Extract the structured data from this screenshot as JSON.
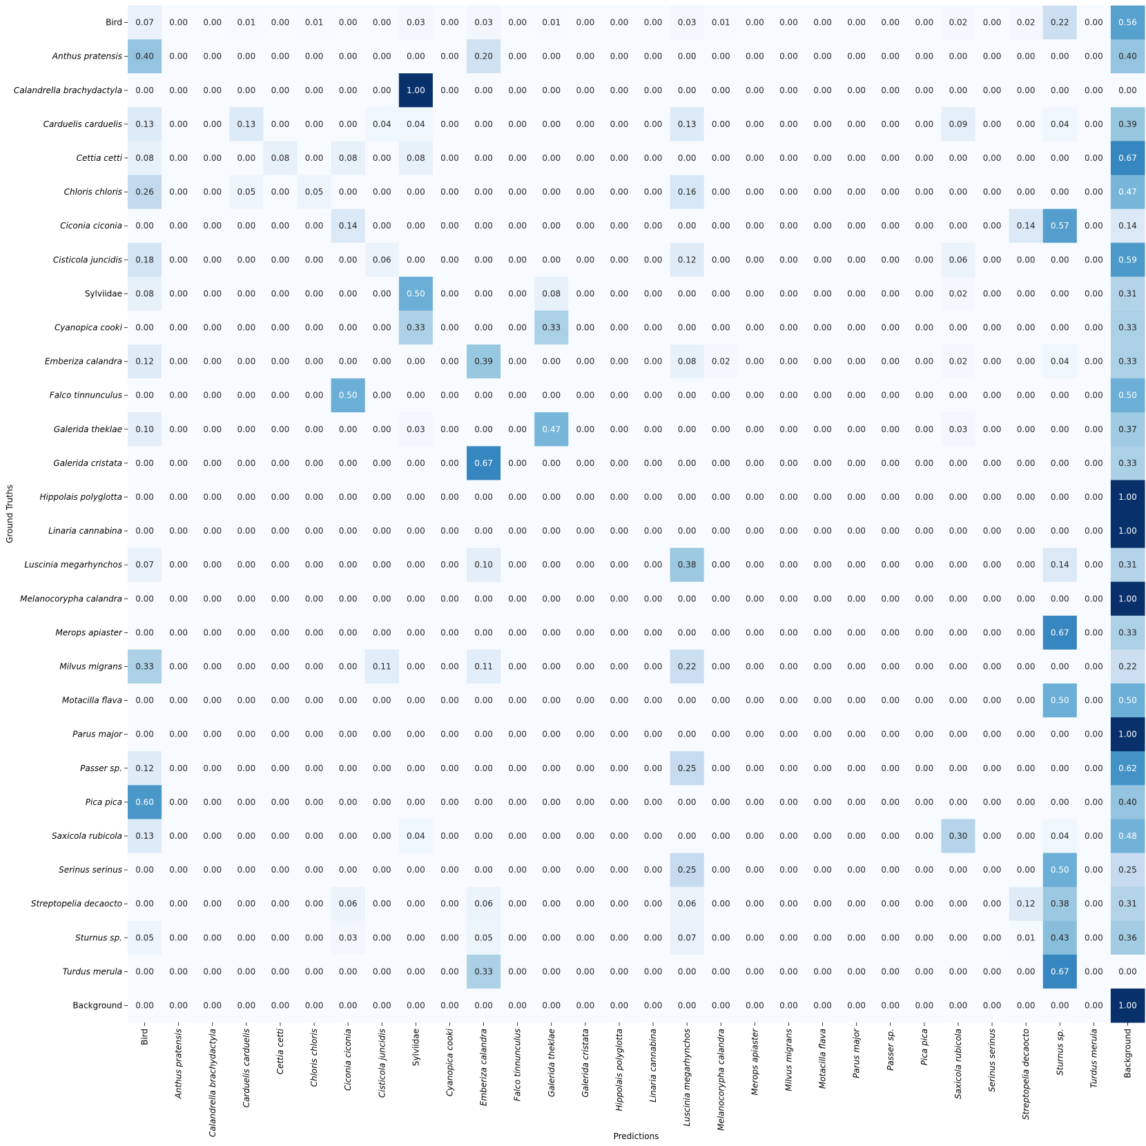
{
  "chart_data": {
    "type": "heatmap",
    "title": "",
    "xlabel": "Predictions",
    "ylabel": "Ground Truths",
    "colormap": "Blues",
    "value_range": [
      0,
      1
    ],
    "colors": {
      "low": "#f7fbff",
      "high": "#08306b"
    },
    "x_categories": [
      "Bird",
      "Anthus pratensis",
      "Calandrella brachydactyla",
      "Carduelis carduelis",
      "Cettia cetti",
      "Chloris chloris",
      "Ciconia ciconia",
      "Cisticola juncidis",
      "Sylviidae",
      "Cyanopica cooki",
      "Emberiza calandra",
      "Falco tinnunculus",
      "Galerida theklae",
      "Galerida cristata",
      "Hippolais polyglotta",
      "Linaria cannabina",
      "Luscinia megarhynchos",
      "Melanocorypha calandra",
      "Merops apiaster",
      "Milvus migrans",
      "Motacilla flava",
      "Parus major",
      "Passer sp.",
      "Pica pica",
      "Saxicola rubicola",
      "Serinus serinus",
      "Streptopelia decaocto",
      "Sturnus sp.",
      "Turdus merula",
      "Background"
    ],
    "y_categories": [
      "Bird",
      "Anthus pratensis",
      "Calandrella brachydactyla",
      "Carduelis carduelis",
      "Cettia cetti",
      "Chloris chloris",
      "Ciconia ciconia",
      "Cisticola juncidis",
      "Sylviidae",
      "Cyanopica cooki",
      "Emberiza calandra",
      "Falco tinnunculus",
      "Galerida theklae",
      "Galerida cristata",
      "Hippolais polyglotta",
      "Linaria cannabina",
      "Luscinia megarhynchos",
      "Melanocorypha calandra",
      "Merops apiaster",
      "Milvus migrans",
      "Motacilla flava",
      "Parus major",
      "Passer sp.",
      "Pica pica",
      "Saxicola rubicola",
      "Serinus serinus",
      "Streptopelia decaocto",
      "Sturnus sp.",
      "Turdus merula",
      "Background"
    ],
    "italic_labels": [
      false,
      true,
      true,
      true,
      true,
      true,
      true,
      true,
      false,
      true,
      true,
      true,
      true,
      true,
      true,
      true,
      true,
      true,
      true,
      true,
      true,
      true,
      true,
      true,
      true,
      true,
      true,
      true,
      true,
      false
    ],
    "values": [
      [
        0.07,
        0.0,
        0.0,
        0.01,
        0.0,
        0.01,
        0.0,
        0.0,
        0.03,
        0.0,
        0.03,
        0.0,
        0.01,
        0.0,
        0.0,
        0.0,
        0.03,
        0.01,
        0.0,
        0.0,
        0.0,
        0.0,
        0.0,
        0.0,
        0.02,
        0.0,
        0.02,
        0.22,
        0.0,
        0.56
      ],
      [
        0.4,
        0.0,
        0.0,
        0.0,
        0.0,
        0.0,
        0.0,
        0.0,
        0.0,
        0.0,
        0.2,
        0.0,
        0.0,
        0.0,
        0.0,
        0.0,
        0.0,
        0.0,
        0.0,
        0.0,
        0.0,
        0.0,
        0.0,
        0.0,
        0.0,
        0.0,
        0.0,
        0.0,
        0.0,
        0.4
      ],
      [
        0.0,
        0.0,
        0.0,
        0.0,
        0.0,
        0.0,
        0.0,
        0.0,
        1.0,
        0.0,
        0.0,
        0.0,
        0.0,
        0.0,
        0.0,
        0.0,
        0.0,
        0.0,
        0.0,
        0.0,
        0.0,
        0.0,
        0.0,
        0.0,
        0.0,
        0.0,
        0.0,
        0.0,
        0.0,
        0.0
      ],
      [
        0.13,
        0.0,
        0.0,
        0.13,
        0.0,
        0.0,
        0.0,
        0.04,
        0.04,
        0.0,
        0.0,
        0.0,
        0.0,
        0.0,
        0.0,
        0.0,
        0.13,
        0.0,
        0.0,
        0.0,
        0.0,
        0.0,
        0.0,
        0.0,
        0.09,
        0.0,
        0.0,
        0.04,
        0.0,
        0.39
      ],
      [
        0.08,
        0.0,
        0.0,
        0.0,
        0.08,
        0.0,
        0.08,
        0.0,
        0.08,
        0.0,
        0.0,
        0.0,
        0.0,
        0.0,
        0.0,
        0.0,
        0.0,
        0.0,
        0.0,
        0.0,
        0.0,
        0.0,
        0.0,
        0.0,
        0.0,
        0.0,
        0.0,
        0.0,
        0.0,
        0.67
      ],
      [
        0.26,
        0.0,
        0.0,
        0.05,
        0.0,
        0.05,
        0.0,
        0.0,
        0.0,
        0.0,
        0.0,
        0.0,
        0.0,
        0.0,
        0.0,
        0.0,
        0.16,
        0.0,
        0.0,
        0.0,
        0.0,
        0.0,
        0.0,
        0.0,
        0.0,
        0.0,
        0.0,
        0.0,
        0.0,
        0.47
      ],
      [
        0.0,
        0.0,
        0.0,
        0.0,
        0.0,
        0.0,
        0.14,
        0.0,
        0.0,
        0.0,
        0.0,
        0.0,
        0.0,
        0.0,
        0.0,
        0.0,
        0.0,
        0.0,
        0.0,
        0.0,
        0.0,
        0.0,
        0.0,
        0.0,
        0.0,
        0.0,
        0.14,
        0.57,
        0.0,
        0.14
      ],
      [
        0.18,
        0.0,
        0.0,
        0.0,
        0.0,
        0.0,
        0.0,
        0.06,
        0.0,
        0.0,
        0.0,
        0.0,
        0.0,
        0.0,
        0.0,
        0.0,
        0.12,
        0.0,
        0.0,
        0.0,
        0.0,
        0.0,
        0.0,
        0.0,
        0.06,
        0.0,
        0.0,
        0.0,
        0.0,
        0.59
      ],
      [
        0.08,
        0.0,
        0.0,
        0.0,
        0.0,
        0.0,
        0.0,
        0.0,
        0.5,
        0.0,
        0.0,
        0.0,
        0.08,
        0.0,
        0.0,
        0.0,
        0.0,
        0.0,
        0.0,
        0.0,
        0.0,
        0.0,
        0.0,
        0.0,
        0.02,
        0.0,
        0.0,
        0.0,
        0.0,
        0.31
      ],
      [
        0.0,
        0.0,
        0.0,
        0.0,
        0.0,
        0.0,
        0.0,
        0.0,
        0.33,
        0.0,
        0.0,
        0.0,
        0.33,
        0.0,
        0.0,
        0.0,
        0.0,
        0.0,
        0.0,
        0.0,
        0.0,
        0.0,
        0.0,
        0.0,
        0.0,
        0.0,
        0.0,
        0.0,
        0.0,
        0.33
      ],
      [
        0.12,
        0.0,
        0.0,
        0.0,
        0.0,
        0.0,
        0.0,
        0.0,
        0.0,
        0.0,
        0.39,
        0.0,
        0.0,
        0.0,
        0.0,
        0.0,
        0.08,
        0.02,
        0.0,
        0.0,
        0.0,
        0.0,
        0.0,
        0.0,
        0.02,
        0.0,
        0.0,
        0.04,
        0.0,
        0.33
      ],
      [
        0.0,
        0.0,
        0.0,
        0.0,
        0.0,
        0.0,
        0.5,
        0.0,
        0.0,
        0.0,
        0.0,
        0.0,
        0.0,
        0.0,
        0.0,
        0.0,
        0.0,
        0.0,
        0.0,
        0.0,
        0.0,
        0.0,
        0.0,
        0.0,
        0.0,
        0.0,
        0.0,
        0.0,
        0.0,
        0.5
      ],
      [
        0.1,
        0.0,
        0.0,
        0.0,
        0.0,
        0.0,
        0.0,
        0.0,
        0.03,
        0.0,
        0.0,
        0.0,
        0.47,
        0.0,
        0.0,
        0.0,
        0.0,
        0.0,
        0.0,
        0.0,
        0.0,
        0.0,
        0.0,
        0.0,
        0.03,
        0.0,
        0.0,
        0.0,
        0.0,
        0.37
      ],
      [
        0.0,
        0.0,
        0.0,
        0.0,
        0.0,
        0.0,
        0.0,
        0.0,
        0.0,
        0.0,
        0.67,
        0.0,
        0.0,
        0.0,
        0.0,
        0.0,
        0.0,
        0.0,
        0.0,
        0.0,
        0.0,
        0.0,
        0.0,
        0.0,
        0.0,
        0.0,
        0.0,
        0.0,
        0.0,
        0.33
      ],
      [
        0.0,
        0.0,
        0.0,
        0.0,
        0.0,
        0.0,
        0.0,
        0.0,
        0.0,
        0.0,
        0.0,
        0.0,
        0.0,
        0.0,
        0.0,
        0.0,
        0.0,
        0.0,
        0.0,
        0.0,
        0.0,
        0.0,
        0.0,
        0.0,
        0.0,
        0.0,
        0.0,
        0.0,
        0.0,
        1.0
      ],
      [
        0.0,
        0.0,
        0.0,
        0.0,
        0.0,
        0.0,
        0.0,
        0.0,
        0.0,
        0.0,
        0.0,
        0.0,
        0.0,
        0.0,
        0.0,
        0.0,
        0.0,
        0.0,
        0.0,
        0.0,
        0.0,
        0.0,
        0.0,
        0.0,
        0.0,
        0.0,
        0.0,
        0.0,
        0.0,
        1.0
      ],
      [
        0.07,
        0.0,
        0.0,
        0.0,
        0.0,
        0.0,
        0.0,
        0.0,
        0.0,
        0.0,
        0.1,
        0.0,
        0.0,
        0.0,
        0.0,
        0.0,
        0.38,
        0.0,
        0.0,
        0.0,
        0.0,
        0.0,
        0.0,
        0.0,
        0.0,
        0.0,
        0.0,
        0.14,
        0.0,
        0.31
      ],
      [
        0.0,
        0.0,
        0.0,
        0.0,
        0.0,
        0.0,
        0.0,
        0.0,
        0.0,
        0.0,
        0.0,
        0.0,
        0.0,
        0.0,
        0.0,
        0.0,
        0.0,
        0.0,
        0.0,
        0.0,
        0.0,
        0.0,
        0.0,
        0.0,
        0.0,
        0.0,
        0.0,
        0.0,
        0.0,
        1.0
      ],
      [
        0.0,
        0.0,
        0.0,
        0.0,
        0.0,
        0.0,
        0.0,
        0.0,
        0.0,
        0.0,
        0.0,
        0.0,
        0.0,
        0.0,
        0.0,
        0.0,
        0.0,
        0.0,
        0.0,
        0.0,
        0.0,
        0.0,
        0.0,
        0.0,
        0.0,
        0.0,
        0.0,
        0.67,
        0.0,
        0.33
      ],
      [
        0.33,
        0.0,
        0.0,
        0.0,
        0.0,
        0.0,
        0.0,
        0.11,
        0.0,
        0.0,
        0.11,
        0.0,
        0.0,
        0.0,
        0.0,
        0.0,
        0.22,
        0.0,
        0.0,
        0.0,
        0.0,
        0.0,
        0.0,
        0.0,
        0.0,
        0.0,
        0.0,
        0.0,
        0.0,
        0.22
      ],
      [
        0.0,
        0.0,
        0.0,
        0.0,
        0.0,
        0.0,
        0.0,
        0.0,
        0.0,
        0.0,
        0.0,
        0.0,
        0.0,
        0.0,
        0.0,
        0.0,
        0.0,
        0.0,
        0.0,
        0.0,
        0.0,
        0.0,
        0.0,
        0.0,
        0.0,
        0.0,
        0.0,
        0.5,
        0.0,
        0.5
      ],
      [
        0.0,
        0.0,
        0.0,
        0.0,
        0.0,
        0.0,
        0.0,
        0.0,
        0.0,
        0.0,
        0.0,
        0.0,
        0.0,
        0.0,
        0.0,
        0.0,
        0.0,
        0.0,
        0.0,
        0.0,
        0.0,
        0.0,
        0.0,
        0.0,
        0.0,
        0.0,
        0.0,
        0.0,
        0.0,
        1.0
      ],
      [
        0.12,
        0.0,
        0.0,
        0.0,
        0.0,
        0.0,
        0.0,
        0.0,
        0.0,
        0.0,
        0.0,
        0.0,
        0.0,
        0.0,
        0.0,
        0.0,
        0.25,
        0.0,
        0.0,
        0.0,
        0.0,
        0.0,
        0.0,
        0.0,
        0.0,
        0.0,
        0.0,
        0.0,
        0.0,
        0.62
      ],
      [
        0.6,
        0.0,
        0.0,
        0.0,
        0.0,
        0.0,
        0.0,
        0.0,
        0.0,
        0.0,
        0.0,
        0.0,
        0.0,
        0.0,
        0.0,
        0.0,
        0.0,
        0.0,
        0.0,
        0.0,
        0.0,
        0.0,
        0.0,
        0.0,
        0.0,
        0.0,
        0.0,
        0.0,
        0.0,
        0.4
      ],
      [
        0.13,
        0.0,
        0.0,
        0.0,
        0.0,
        0.0,
        0.0,
        0.0,
        0.04,
        0.0,
        0.0,
        0.0,
        0.0,
        0.0,
        0.0,
        0.0,
        0.0,
        0.0,
        0.0,
        0.0,
        0.0,
        0.0,
        0.0,
        0.0,
        0.3,
        0.0,
        0.0,
        0.04,
        0.0,
        0.48
      ],
      [
        0.0,
        0.0,
        0.0,
        0.0,
        0.0,
        0.0,
        0.0,
        0.0,
        0.0,
        0.0,
        0.0,
        0.0,
        0.0,
        0.0,
        0.0,
        0.0,
        0.25,
        0.0,
        0.0,
        0.0,
        0.0,
        0.0,
        0.0,
        0.0,
        0.0,
        0.0,
        0.0,
        0.5,
        0.0,
        0.25
      ],
      [
        0.0,
        0.0,
        0.0,
        0.0,
        0.0,
        0.0,
        0.06,
        0.0,
        0.0,
        0.0,
        0.06,
        0.0,
        0.0,
        0.0,
        0.0,
        0.0,
        0.06,
        0.0,
        0.0,
        0.0,
        0.0,
        0.0,
        0.0,
        0.0,
        0.0,
        0.0,
        0.12,
        0.38,
        0.0,
        0.31
      ],
      [
        0.05,
        0.0,
        0.0,
        0.0,
        0.0,
        0.0,
        0.03,
        0.0,
        0.0,
        0.0,
        0.05,
        0.0,
        0.0,
        0.0,
        0.0,
        0.0,
        0.07,
        0.0,
        0.0,
        0.0,
        0.0,
        0.0,
        0.0,
        0.0,
        0.0,
        0.0,
        0.01,
        0.43,
        0.0,
        0.36
      ],
      [
        0.0,
        0.0,
        0.0,
        0.0,
        0.0,
        0.0,
        0.0,
        0.0,
        0.0,
        0.0,
        0.33,
        0.0,
        0.0,
        0.0,
        0.0,
        0.0,
        0.0,
        0.0,
        0.0,
        0.0,
        0.0,
        0.0,
        0.0,
        0.0,
        0.0,
        0.0,
        0.0,
        0.67,
        0.0,
        0.0
      ],
      [
        0.0,
        0.0,
        0.0,
        0.0,
        0.0,
        0.0,
        0.0,
        0.0,
        0.0,
        0.0,
        0.0,
        0.0,
        0.0,
        0.0,
        0.0,
        0.0,
        0.0,
        0.0,
        0.0,
        0.0,
        0.0,
        0.0,
        0.0,
        0.0,
        0.0,
        0.0,
        0.0,
        0.0,
        0.0,
        1.0
      ]
    ]
  }
}
